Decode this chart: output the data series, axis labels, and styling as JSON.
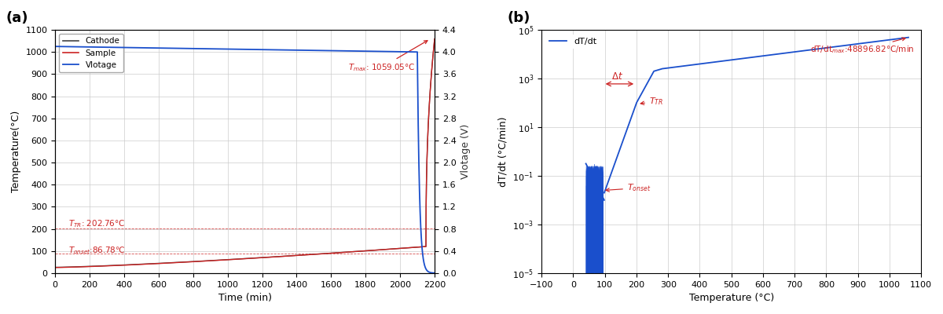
{
  "panel_a": {
    "title_label": "(a)",
    "xlabel": "Time (min)",
    "ylabel_left": "Temperature(°C)",
    "ylabel_right": "Vlotage (V)",
    "xlim": [
      0,
      2200
    ],
    "ylim_left": [
      0,
      1100
    ],
    "ylim_right": [
      0.0,
      4.4
    ],
    "xticks": [
      0,
      200,
      400,
      600,
      800,
      1000,
      1200,
      1400,
      1600,
      1800,
      2000,
      2200
    ],
    "yticks_left": [
      0,
      100,
      200,
      300,
      400,
      500,
      600,
      700,
      800,
      900,
      1000,
      1100
    ],
    "yticks_right": [
      0.0,
      0.4,
      0.8,
      1.2,
      1.6,
      2.0,
      2.4,
      2.8,
      3.2,
      3.6,
      4.0,
      4.4
    ],
    "cathode_color": "#444444",
    "sample_color": "#cc2222",
    "voltage_color": "#1a4fcc",
    "ttr_y": 202.76,
    "tonset_y": 86.78,
    "tmax_y": 1059.05,
    "legend_labels": [
      "Cathode",
      "Sample",
      "Vlotage"
    ]
  },
  "panel_b": {
    "title_label": "(b)",
    "xlabel": "Temperature (°C)",
    "ylabel": "dT/dt (°C/min)",
    "xlim": [
      -100,
      1100
    ],
    "ylim_bottom": 1e-05,
    "ylim_top": 100000.0,
    "xticks": [
      -100,
      0,
      100,
      200,
      300,
      400,
      500,
      600,
      700,
      800,
      900,
      1000,
      1100
    ],
    "line_color": "#1a4fcc",
    "legend_label": "dT/dt",
    "red_color": "#cc2222"
  }
}
